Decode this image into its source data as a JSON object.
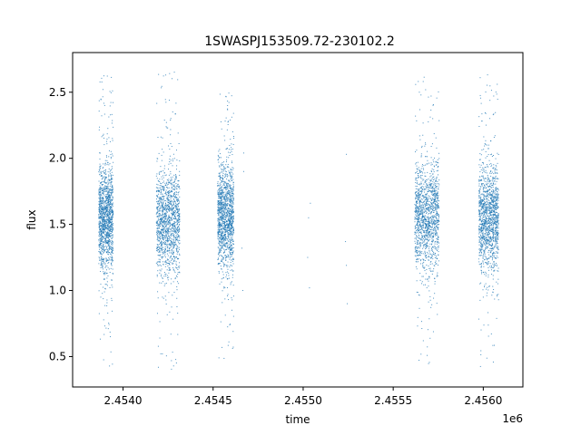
{
  "chart_data": {
    "type": "scatter",
    "title": "1SWASPJ153509.72-230102.2",
    "xlabel": "time",
    "ylabel": "flux",
    "x_offset_label": "1e6",
    "x_scale": 1000000,
    "xlim": [
      2453720,
      2456220
    ],
    "ylim": [
      0.27,
      2.8
    ],
    "x_ticks": [
      2.454,
      2.4545,
      2.455,
      2.4555,
      2.456
    ],
    "x_tick_labels": [
      "2.4540",
      "2.4545",
      "2.4550",
      "2.4555",
      "2.4560"
    ],
    "y_ticks": [
      0.5,
      1.0,
      1.5,
      2.0,
      2.5
    ],
    "y_tick_labels": [
      "0.5",
      "1.0",
      "1.5",
      "2.0",
      "2.5"
    ],
    "grid": false,
    "point_color": "#1f77b4",
    "clusters": [
      {
        "x_start": 2453865,
        "x_end": 2453945,
        "y_center": 1.55,
        "y_min": 0.4,
        "y_max": 2.66
      },
      {
        "x_start": 2454185,
        "x_end": 2454315,
        "y_center": 1.52,
        "y_min": 0.4,
        "y_max": 2.68
      },
      {
        "x_start": 2454525,
        "x_end": 2454615,
        "y_center": 1.55,
        "y_min": 0.45,
        "y_max": 2.5
      },
      {
        "x_start": 2455620,
        "x_end": 2455755,
        "y_center": 1.55,
        "y_min": 0.44,
        "y_max": 2.63
      },
      {
        "x_start": 2455975,
        "x_end": 2456085,
        "y_center": 1.55,
        "y_min": 0.42,
        "y_max": 2.65
      }
    ],
    "sparse_points": [
      {
        "x": 2454660,
        "y": 1.32
      },
      {
        "x": 2454665,
        "y": 1.0
      },
      {
        "x": 2454670,
        "y": 1.9
      },
      {
        "x": 2454670,
        "y": 2.04
      },
      {
        "x": 2455025,
        "y": 1.25
      },
      {
        "x": 2455030,
        "y": 1.55
      },
      {
        "x": 2455035,
        "y": 1.02
      },
      {
        "x": 2455040,
        "y": 1.66
      },
      {
        "x": 2455235,
        "y": 1.37
      },
      {
        "x": 2455240,
        "y": 1.19
      },
      {
        "x": 2455245,
        "y": 0.9
      },
      {
        "x": 2455240,
        "y": 2.03
      }
    ]
  }
}
